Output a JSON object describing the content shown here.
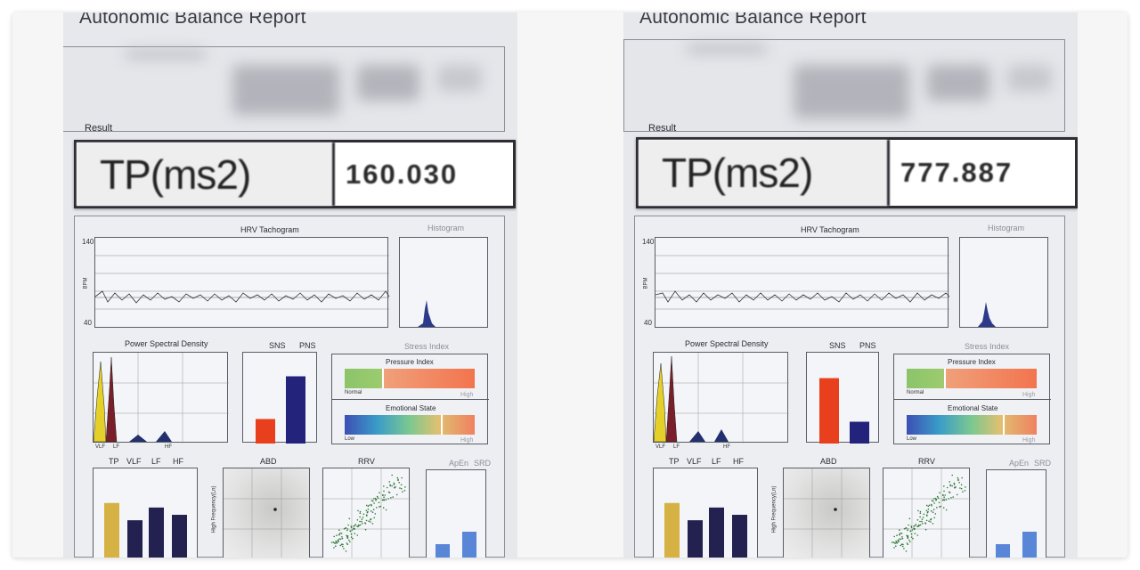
{
  "report": {
    "title": "Autonomic Balance Report",
    "result_label": "Result",
    "tp_label": "TP(ms2)"
  },
  "charts": {
    "hrv_tachogram": {
      "title": "HRV Tachogram",
      "y_axis_label": "BPM",
      "y_max": "140",
      "y_min": "40"
    },
    "histogram": {
      "title": "Histogram"
    },
    "psd": {
      "title": "Power Spectral Density",
      "bands": [
        "VLF",
        "LF",
        "HF"
      ]
    },
    "sns_pns": {
      "sns_label": "SNS",
      "pns_label": "PNS"
    },
    "stress_index": {
      "title": "Stress Index",
      "pressure_title": "Pressure Index",
      "pressure_low": "Normal",
      "pressure_high": "High",
      "emotional_title": "Emotional State",
      "emotional_low": "Low",
      "emotional_high": "High"
    },
    "bands_bar": {
      "labels": [
        "TP",
        "VLF",
        "LF",
        "HF"
      ]
    },
    "abd": {
      "title": "ABD",
      "y_axis_label": "High Frequency(Ln)"
    },
    "rrv": {
      "title": "RRV"
    },
    "apen_srd": {
      "labels": [
        "ApEn",
        "SRD"
      ]
    }
  },
  "colors": {
    "sns": "#e8401c",
    "pns": "#24237c",
    "tp_bar": "#d6b144",
    "band_bar": "#22214f",
    "apen_bar": "#5a86d8",
    "vlf_fill": "#e5d02a",
    "lf_fill": "#7a1f2a",
    "hf_fill": "#22306e"
  },
  "panels": [
    {
      "id": "left",
      "tp_value": "160.030",
      "sns_level": 0.27,
      "pns_level": 0.74,
      "pressure_marker": 0.29,
      "emotional_marker": 0.74,
      "band_levels": [
        0.62,
        0.43,
        0.57,
        0.49
      ],
      "apen_levels": [
        0.17,
        0.31
      ]
    },
    {
      "id": "right",
      "tp_value": "777.887",
      "sns_level": 0.72,
      "pns_level": 0.24,
      "pressure_marker": 0.29,
      "emotional_marker": 0.74,
      "band_levels": [
        0.62,
        0.43,
        0.57,
        0.49
      ],
      "apen_levels": [
        0.17,
        0.31
      ]
    }
  ]
}
